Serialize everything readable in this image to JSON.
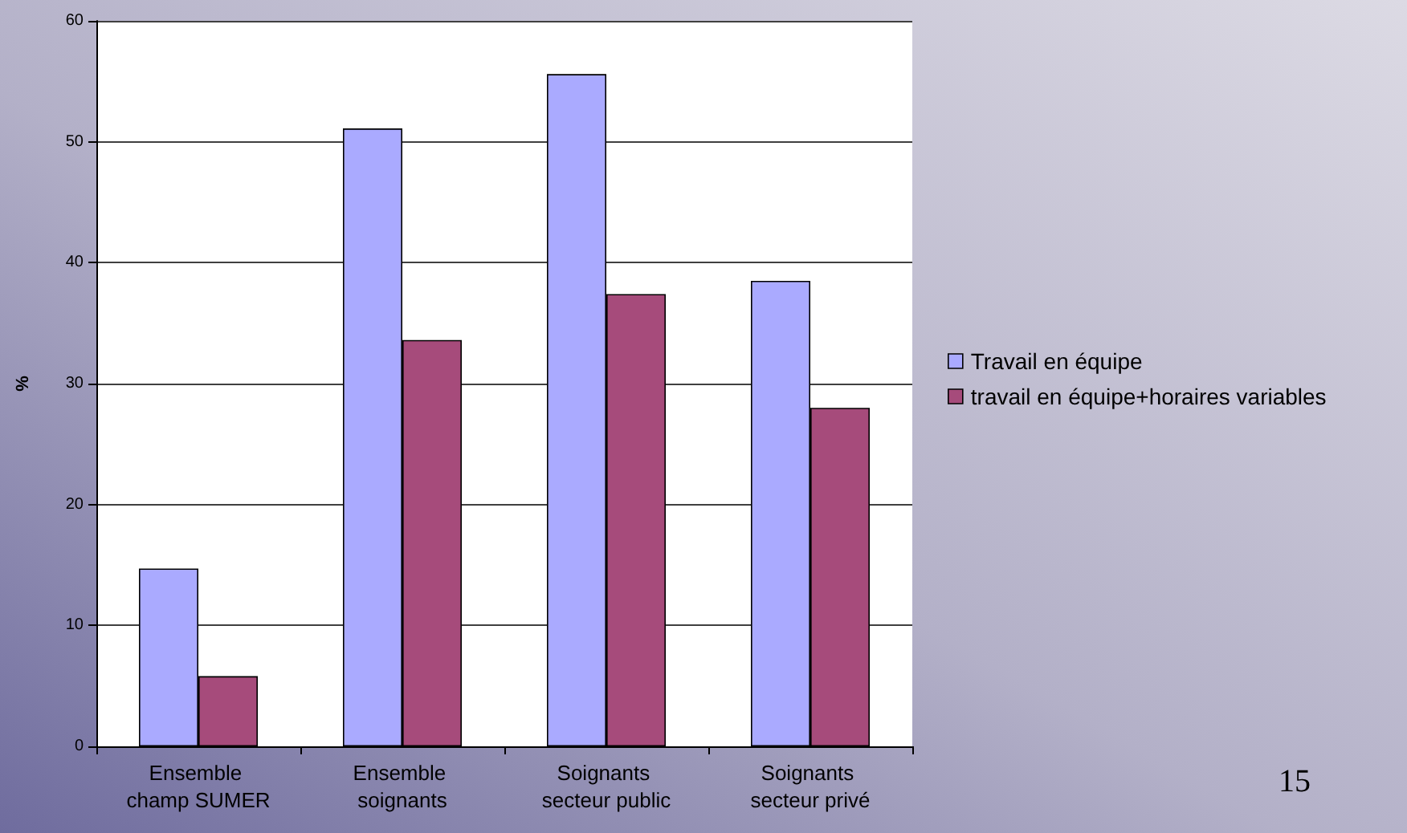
{
  "chart_data": {
    "type": "bar",
    "ylabel": "%",
    "categories": [
      "Ensemble champ SUMER",
      "Ensemble soignants",
      "Soignants secteur public",
      "Soignants secteur privé"
    ],
    "series": [
      {
        "name": "Travail en équipe",
        "color": "#aaaaff",
        "values": [
          14.7,
          51.1,
          55.6,
          38.5
        ]
      },
      {
        "name": "travail en équipe+horaires variables",
        "color": "#a64b7b",
        "values": [
          5.8,
          33.6,
          37.4,
          28.0
        ]
      }
    ],
    "ylim": [
      0,
      60
    ],
    "yticks": [
      0,
      10,
      20,
      30,
      40,
      50,
      60
    ],
    "grid": "y",
    "legend": "right",
    "annotations": [
      "15"
    ]
  }
}
